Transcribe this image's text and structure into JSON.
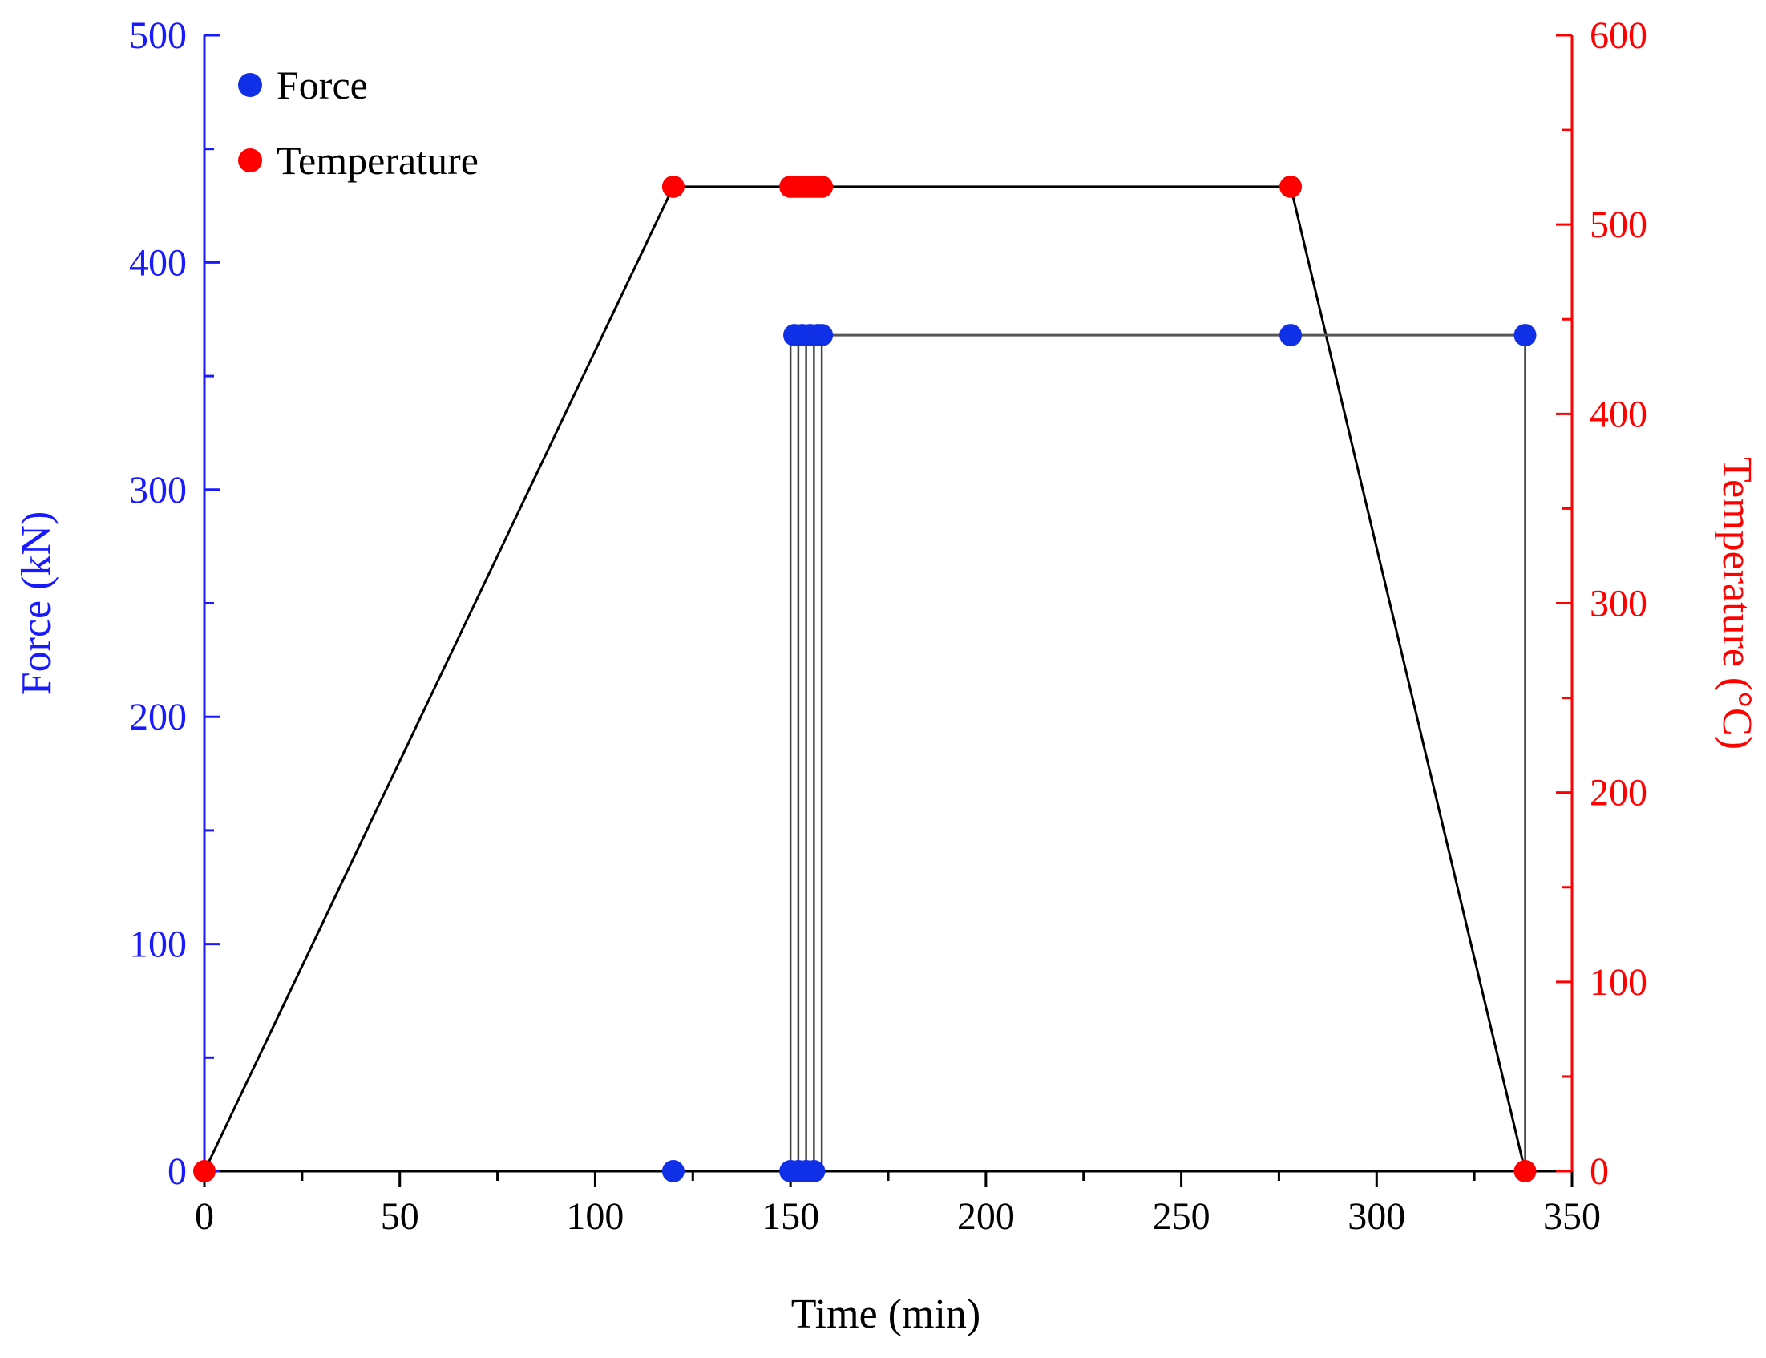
{
  "chart_data": {
    "type": "scatter",
    "xlabel": "Time (min)",
    "ylabel_left": "Force (kN)",
    "ylabel_right": "Temperature (°C)",
    "xlim": [
      0,
      350
    ],
    "ylim_left": [
      0,
      500
    ],
    "ylim_right": [
      0,
      600
    ],
    "x_ticks": [
      "0",
      "50",
      "100",
      "150",
      "200",
      "250",
      "300",
      "350"
    ],
    "y_left_ticks": [
      "0",
      "100",
      "200",
      "300",
      "400",
      "500"
    ],
    "y_right_ticks": [
      "0",
      "100",
      "200",
      "300",
      "400",
      "500",
      "600"
    ],
    "grid": false,
    "legend_position": "top-left",
    "colors": {
      "force": "#1030e8",
      "temperature": "#ff0000",
      "force_axis": "#1a1aff",
      "temperature_axis": "#ff0000",
      "connector": "#000000"
    },
    "series": [
      {
        "name": "Force",
        "axis": "left",
        "x": [
          120,
          150,
          151,
          152,
          153,
          154,
          155,
          156,
          157,
          158,
          278,
          338
        ],
        "y": [
          0,
          0,
          368,
          0,
          368,
          0,
          368,
          0,
          368,
          368,
          368,
          368
        ]
      },
      {
        "name": "Temperature",
        "axis": "right",
        "x": [
          0,
          120,
          150,
          151,
          152,
          153,
          154,
          155,
          156,
          157,
          158,
          278,
          338
        ],
        "y": [
          0,
          520,
          520,
          520,
          520,
          520,
          520,
          520,
          520,
          520,
          520,
          520,
          0
        ]
      }
    ],
    "force_step_lines": [
      {
        "x": 150,
        "from": 0,
        "to": 368
      },
      {
        "x": 152,
        "from": 0,
        "to": 368
      },
      {
        "x": 154,
        "from": 0,
        "to": 368
      },
      {
        "x": 156,
        "from": 0,
        "to": 368
      },
      {
        "x": 158,
        "from": 0,
        "to": 368
      },
      {
        "x": 338,
        "from": 0,
        "to": 368
      }
    ],
    "force_hold_line": {
      "x_start": 150,
      "x_end": 338,
      "y": 368
    },
    "temperature_profile": [
      [
        0,
        0
      ],
      [
        120,
        520
      ],
      [
        278,
        520
      ],
      [
        338,
        0
      ]
    ]
  }
}
